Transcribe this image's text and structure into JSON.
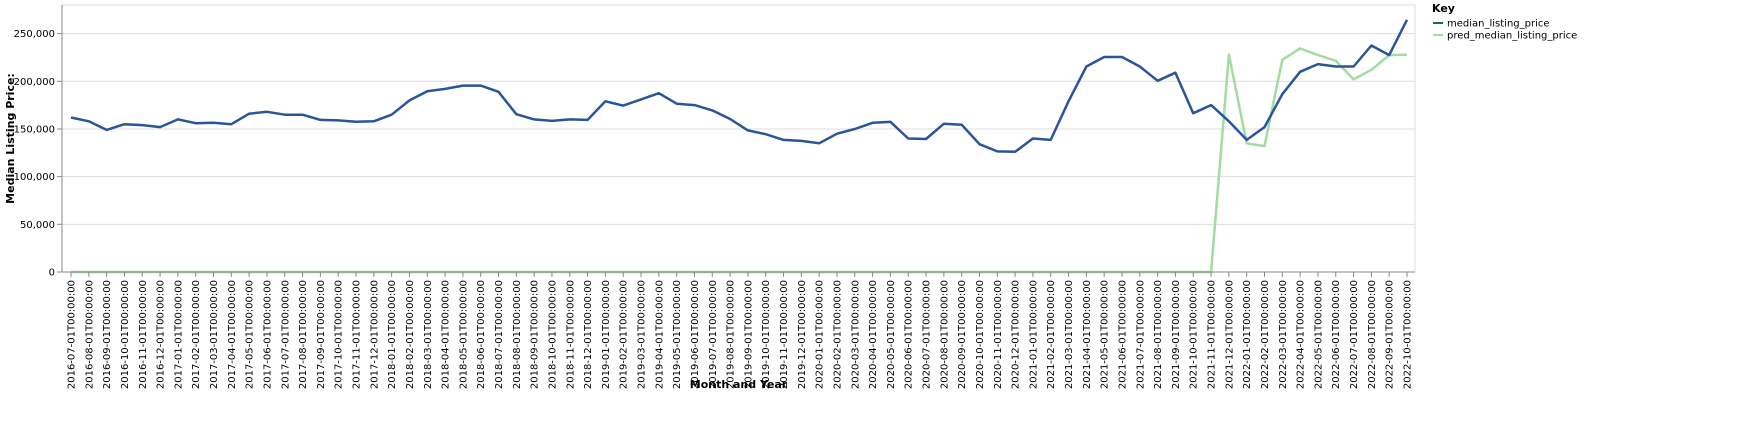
{
  "chart_data": {
    "type": "line",
    "xlabel": "Month and Year",
    "ylabel": "Median Listing Price:",
    "ylim": [
      0,
      280000
    ],
    "yticks": [
      0,
      50000,
      100000,
      150000,
      200000,
      250000
    ],
    "ytick_labels": [
      "0",
      "50,000",
      "100,000",
      "150,000",
      "200,000",
      "250,000"
    ],
    "grid": true,
    "legend": {
      "title": "Key",
      "position": "top-right"
    },
    "x": [
      "2016-07-01T00:00:00",
      "2016-08-01T00:00:00",
      "2016-09-01T00:00:00",
      "2016-10-01T00:00:00",
      "2016-11-01T00:00:00",
      "2016-12-01T00:00:00",
      "2017-01-01T00:00:00",
      "2017-02-01T00:00:00",
      "2017-03-01T00:00:00",
      "2017-04-01T00:00:00",
      "2017-05-01T00:00:00",
      "2017-06-01T00:00:00",
      "2017-07-01T00:00:00",
      "2017-08-01T00:00:00",
      "2017-09-01T00:00:00",
      "2017-10-01T00:00:00",
      "2017-11-01T00:00:00",
      "2017-12-01T00:00:00",
      "2018-01-01T00:00:00",
      "2018-02-01T00:00:00",
      "2018-03-01T00:00:00",
      "2018-04-01T00:00:00",
      "2018-05-01T00:00:00",
      "2018-06-01T00:00:00",
      "2018-07-01T00:00:00",
      "2018-08-01T00:00:00",
      "2018-09-01T00:00:00",
      "2018-10-01T00:00:00",
      "2018-11-01T00:00:00",
      "2018-12-01T00:00:00",
      "2019-01-01T00:00:00",
      "2019-02-01T00:00:00",
      "2019-03-01T00:00:00",
      "2019-04-01T00:00:00",
      "2019-05-01T00:00:00",
      "2019-06-01T00:00:00",
      "2019-07-01T00:00:00",
      "2019-08-01T00:00:00",
      "2019-09-01T00:00:00",
      "2019-10-01T00:00:00",
      "2019-11-01T00:00:00",
      "2019-12-01T00:00:00",
      "2020-01-01T00:00:00",
      "2020-02-01T00:00:00",
      "2020-03-01T00:00:00",
      "2020-04-01T00:00:00",
      "2020-05-01T00:00:00",
      "2020-06-01T00:00:00",
      "2020-07-01T00:00:00",
      "2020-08-01T00:00:00",
      "2020-09-01T00:00:00",
      "2020-10-01T00:00:00",
      "2020-11-01T00:00:00",
      "2020-12-01T00:00:00",
      "2021-01-01T00:00:00",
      "2021-02-01T00:00:00",
      "2021-03-01T00:00:00",
      "2021-04-01T00:00:00",
      "2021-05-01T00:00:00",
      "2021-06-01T00:00:00",
      "2021-07-01T00:00:00",
      "2021-08-01T00:00:00",
      "2021-09-01T00:00:00",
      "2021-10-01T00:00:00",
      "2021-11-01T00:00:00",
      "2021-12-01T00:00:00",
      "2022-01-01T00:00:00",
      "2022-02-01T00:00:00",
      "2022-03-01T00:00:00",
      "2022-04-01T00:00:00",
      "2022-05-01T00:00:00",
      "2022-06-01T00:00:00",
      "2022-07-01T00:00:00",
      "2022-08-01T00:00:00",
      "2022-09-01T00:00:00",
      "2022-10-01T00:00:00"
    ],
    "series": [
      {
        "name": "median_listing_price",
        "color": "#2a5599",
        "values": [
          162000,
          158000,
          149000,
          155000,
          154000,
          152000,
          160000,
          156000,
          156500,
          155000,
          166000,
          168000,
          165000,
          165000,
          159500,
          159000,
          157500,
          158000,
          165000,
          180000,
          189500,
          192000,
          195500,
          195500,
          189000,
          165500,
          160000,
          158500,
          160000,
          159500,
          179000,
          174500,
          181000,
          187500,
          176500,
          175000,
          169500,
          160500,
          148500,
          144500,
          138500,
          137500,
          135000,
          145000,
          150000,
          156500,
          157500,
          140000,
          139500,
          155500,
          154500,
          134000,
          126500,
          126000,
          140000,
          138500,
          179000,
          215500,
          225500,
          225500,
          215500,
          200500,
          209000,
          166500,
          175000,
          158000,
          138500,
          152000,
          186500,
          210000,
          218000,
          215500,
          215500,
          237500,
          227500,
          264500
        ]
      },
      {
        "name": "pred_median_listing_price",
        "color": "#a3dca0",
        "values": [
          0,
          0,
          0,
          0,
          0,
          0,
          0,
          0,
          0,
          0,
          0,
          0,
          0,
          0,
          0,
          0,
          0,
          0,
          0,
          0,
          0,
          0,
          0,
          0,
          0,
          0,
          0,
          0,
          0,
          0,
          0,
          0,
          0,
          0,
          0,
          0,
          0,
          0,
          0,
          0,
          0,
          0,
          0,
          0,
          0,
          0,
          0,
          0,
          0,
          0,
          0,
          0,
          0,
          0,
          0,
          0,
          0,
          0,
          0,
          0,
          0,
          0,
          0,
          0,
          0,
          228000,
          135000,
          132000,
          222500,
          234500,
          227500,
          221500,
          202000,
          212000,
          227500,
          228000
        ]
      }
    ]
  }
}
